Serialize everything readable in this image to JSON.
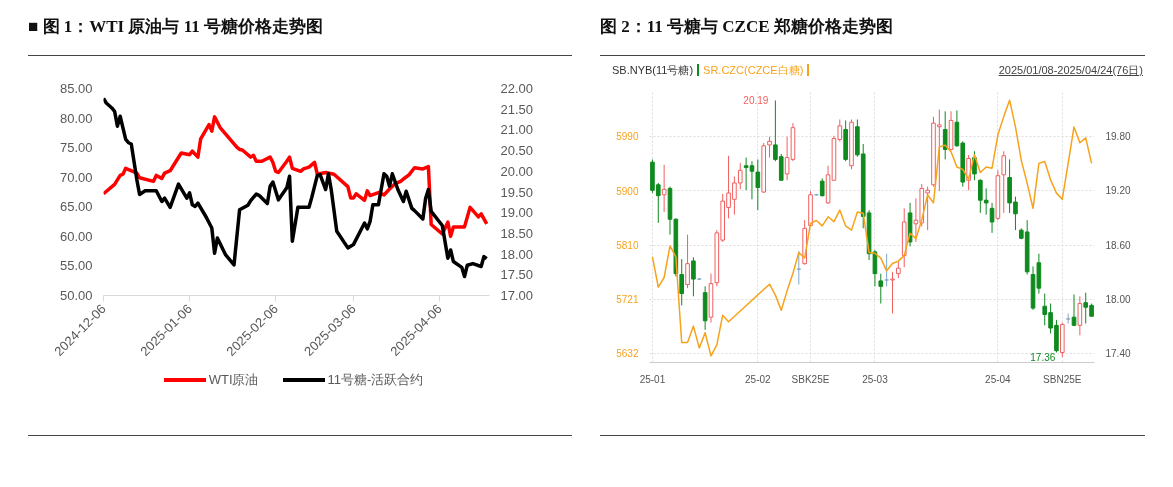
{
  "chart_data": [
    {
      "type": "line",
      "title": "■ 图 1：WTI 原油与 11 号糖价格走势图",
      "xlim": [
        "2024-12-06",
        "2025-04-24"
      ],
      "xticks": [
        "2024-12-06",
        "2025-01-06",
        "2025-02-06",
        "2025-03-06",
        "2025-04-06"
      ],
      "ylim": [
        50,
        85
      ],
      "yticks": [
        {
          "value": 50,
          "label": "50.00"
        },
        {
          "value": 55,
          "label": "55.00"
        },
        {
          "value": 60,
          "label": "60.00"
        },
        {
          "value": 65,
          "label": "65.00"
        },
        {
          "value": 70,
          "label": "70.00"
        },
        {
          "value": 75,
          "label": "75.00"
        },
        {
          "value": 80,
          "label": "80.00"
        },
        {
          "value": 85,
          "label": "85.00"
        }
      ],
      "y2lim": [
        17,
        22
      ],
      "y2ticks": [
        {
          "value": 17,
          "label": "17.00"
        },
        {
          "value": 17.5,
          "label": "17.50"
        },
        {
          "value": 18,
          "label": "18.00"
        },
        {
          "value": 18.5,
          "label": "18.50"
        },
        {
          "value": 19,
          "label": "19.00"
        },
        {
          "value": 19.5,
          "label": "19.50"
        },
        {
          "value": 20,
          "label": "20.00"
        },
        {
          "value": 20.5,
          "label": "20.50"
        },
        {
          "value": 21,
          "label": "21.00"
        },
        {
          "value": 21.5,
          "label": "21.50"
        },
        {
          "value": 22,
          "label": "22.00"
        }
      ],
      "legend": "bottom",
      "grid": false,
      "series": [
        {
          "name": "WTI原油",
          "color": "#ff0000",
          "x": [
            "2024-12-06",
            "2024-12-10",
            "2024-12-12",
            "2024-12-13",
            "2024-12-14",
            "2024-12-18",
            "2024-12-19",
            "2024-12-24",
            "2024-12-25",
            "2024-12-27",
            "2024-12-28",
            "2024-12-30",
            "2025-01-03",
            "2025-01-06",
            "2025-01-07",
            "2025-01-09",
            "2025-01-10",
            "2025-01-13",
            "2025-01-14",
            "2025-01-15",
            "2025-01-17",
            "2025-01-19",
            "2025-01-23",
            "2025-01-24",
            "2025-01-25",
            "2025-01-28",
            "2025-01-29",
            "2025-01-30",
            "2025-02-01",
            "2025-02-04",
            "2025-02-05",
            "2025-02-06",
            "2025-02-07",
            "2025-02-10",
            "2025-02-11",
            "2025-02-12",
            "2025-02-15",
            "2025-02-16",
            "2025-02-18",
            "2025-02-20",
            "2025-02-21",
            "2025-02-24",
            "2025-02-27",
            "2025-03-04",
            "2025-03-05",
            "2025-03-06",
            "2025-03-07",
            "2025-03-10",
            "2025-03-11",
            "2025-03-12",
            "2025-03-15",
            "2025-03-17",
            "2025-03-19",
            "2025-03-21",
            "2025-03-23",
            "2025-03-24",
            "2025-03-26",
            "2025-03-28",
            "2025-03-31",
            "2025-04-02",
            "2025-04-03",
            "2025-04-07",
            "2025-04-09",
            "2025-04-10",
            "2025-04-11",
            "2025-04-15",
            "2025-04-17",
            "2025-04-20",
            "2025-04-21",
            "2025-04-23"
          ],
          "values": [
            67.2,
            68.8,
            70.3,
            70.5,
            71.5,
            70.7,
            69.9,
            69.3,
            70.3,
            69.8,
            70.7,
            71.1,
            74.1,
            73.8,
            74.4,
            73.4,
            76.5,
            78.9,
            77.8,
            80.2,
            78.4,
            77.3,
            75.1,
            74.7,
            74.6,
            73.4,
            73.7,
            72.7,
            72.7,
            73.4,
            72.5,
            71.0,
            70.8,
            72.7,
            73.4,
            71.5,
            71.0,
            71.4,
            71.7,
            72.5,
            70.5,
            70.8,
            70.5,
            68.4,
            66.5,
            66.5,
            67.2,
            66.1,
            67.7,
            66.9,
            67.4,
            67.0,
            68.0,
            68.9,
            69.3,
            69.7,
            70.4,
            71.6,
            71.4,
            71.8,
            62.0,
            60.4,
            62.4,
            60.0,
            61.6,
            61.6,
            64.9,
            63.3,
            63.8,
            62.1
          ]
        },
        {
          "name": "11号糖-活跃合约",
          "color": "#000000",
          "axis": "y2",
          "x": [
            "2024-12-06",
            "2024-12-07",
            "2024-12-09",
            "2024-12-10",
            "2024-12-11",
            "2024-12-12",
            "2024-12-13",
            "2024-12-14",
            "2024-12-15",
            "2024-12-16",
            "2024-12-18",
            "2024-12-19",
            "2024-12-21",
            "2024-12-25",
            "2024-12-27",
            "2024-12-28",
            "2024-12-30",
            "2025-01-02",
            "2025-01-05",
            "2025-01-06",
            "2025-01-07",
            "2025-01-08",
            "2025-01-09",
            "2025-01-12",
            "2025-01-14",
            "2025-01-15",
            "2025-01-16",
            "2025-01-19",
            "2025-01-22",
            "2025-01-24",
            "2025-01-27",
            "2025-01-28",
            "2025-01-30",
            "2025-01-31",
            "2025-02-03",
            "2025-02-04",
            "2025-02-05",
            "2025-02-07",
            "2025-02-10",
            "2025-02-11",
            "2025-02-12",
            "2025-02-14",
            "2025-02-18",
            "2025-02-19",
            "2025-02-21",
            "2025-02-22",
            "2025-02-24",
            "2025-02-25",
            "2025-02-26",
            "2025-02-28",
            "2025-03-04",
            "2025-03-06",
            "2025-03-10",
            "2025-03-11",
            "2025-03-12",
            "2025-03-13",
            "2025-03-15",
            "2025-03-17",
            "2025-03-18",
            "2025-03-19",
            "2025-03-20",
            "2025-03-22",
            "2025-03-24",
            "2025-03-25",
            "2025-03-27",
            "2025-03-28",
            "2025-03-31",
            "2025-04-01",
            "2025-04-02",
            "2025-04-03",
            "2025-04-07",
            "2025-04-09",
            "2025-04-10",
            "2025-04-11",
            "2025-04-14",
            "2025-04-15",
            "2025-04-16",
            "2025-04-18",
            "2025-04-21",
            "2025-04-22",
            "2025-04-23"
          ],
          "values": [
            21.76,
            21.65,
            21.53,
            21.45,
            21.09,
            21.33,
            21.05,
            20.77,
            20.69,
            20.66,
            19.8,
            19.44,
            19.53,
            19.53,
            19.27,
            19.35,
            19.13,
            19.69,
            19.35,
            19.48,
            19.19,
            19.15,
            19.23,
            18.89,
            18.63,
            18.02,
            18.39,
            17.98,
            17.74,
            19.07,
            19.18,
            19.29,
            19.45,
            19.42,
            19.22,
            19.64,
            19.74,
            19.31,
            19.6,
            19.88,
            18.31,
            19.13,
            19.13,
            19.37,
            19.9,
            19.92,
            19.56,
            19.94,
            19.56,
            18.55,
            18.15,
            18.23,
            18.75,
            18.61,
            18.79,
            19.19,
            19.19,
            19.94,
            19.88,
            19.64,
            19.94,
            19.56,
            19.27,
            19.52,
            19.11,
            19.05,
            18.85,
            19.35,
            19.56,
            19.03,
            18.69,
            17.9,
            18.1,
            17.82,
            17.68,
            17.46,
            17.73,
            17.77,
            17.7,
            17.94,
            17.89
          ]
        }
      ]
    },
    {
      "type": "candlestick",
      "title": "图 2：11 号糖与 CZCE 郑糖价格走势图",
      "annotations": [
        "2025/01/08-2025/04/24(76日)"
      ],
      "categories": [
        "25-01",
        null,
        null,
        null,
        null,
        null,
        null,
        null,
        null,
        null,
        null,
        null,
        null,
        null,
        null,
        null,
        null,
        null,
        "25-02",
        null,
        null,
        null,
        null,
        null,
        null,
        null,
        null,
        "SBK25E",
        null,
        null,
        null,
        null,
        null,
        null,
        null,
        null,
        null,
        null,
        "25-03",
        null,
        null,
        null,
        null,
        null,
        null,
        null,
        null,
        null,
        null,
        null,
        null,
        null,
        null,
        null,
        null,
        null,
        null,
        null,
        null,
        "25-04",
        null,
        null,
        null,
        null,
        null,
        null,
        null,
        null,
        null,
        null,
        "SBN25E",
        null,
        null,
        null,
        null,
        null
      ],
      "ylim": [
        5617,
        6065
      ],
      "yticks": [
        5632,
        5721,
        5810,
        5900,
        5990
      ],
      "y2lim": [
        17.3,
        20.3
      ],
      "y2ticks": [
        {
          "value": 17.4,
          "label": "17.40"
        },
        {
          "value": 18,
          "label": "18.00"
        },
        {
          "value": 18.6,
          "label": "18.60"
        },
        {
          "value": 19.2,
          "label": "19.20"
        },
        {
          "value": 19.8,
          "label": "19.80"
        }
      ],
      "grid": true,
      "legend": "top left",
      "series": [
        {
          "type": "candlestick",
          "name": "SB.NYB(11号糖)",
          "axis": "y2",
          "ohlc": [
            [
              19.51,
              19.54,
              19.17,
              19.2
            ],
            [
              19.26,
              19.28,
              18.84,
              19.14
            ],
            [
              19.15,
              19.48,
              18.96,
              19.21
            ],
            [
              19.22,
              19.24,
              18.71,
              18.88
            ],
            [
              18.88,
              18.89,
              18.25,
              18.28
            ],
            [
              18.27,
              18.44,
              17.93,
              18.06
            ],
            [
              18.16,
              18.71,
              18.12,
              18.39
            ],
            [
              18.42,
              18.46,
              18.03,
              18.22
            ],
            [
              18.22,
              18.23,
              18.21,
              18.22
            ],
            [
              18.07,
              18.14,
              17.66,
              17.76
            ],
            [
              17.8,
              18.28,
              17.74,
              18.17
            ],
            [
              18.18,
              18.76,
              18.14,
              18.73
            ],
            [
              18.65,
              19.16,
              18.63,
              19.08
            ],
            [
              19.01,
              19.58,
              18.89,
              19.17
            ],
            [
              19.1,
              19.35,
              18.93,
              19.28
            ],
            [
              19.28,
              19.5,
              19.21,
              19.42
            ],
            [
              19.47,
              19.56,
              19.2,
              19.45
            ],
            [
              19.47,
              19.52,
              19.1,
              19.41
            ],
            [
              19.4,
              19.54,
              18.98,
              19.23
            ],
            [
              19.18,
              19.72,
              19.17,
              19.69
            ],
            [
              19.7,
              19.79,
              19.56,
              19.74
            ],
            [
              19.7,
              20.19,
              19.52,
              19.54
            ],
            [
              19.57,
              19.6,
              19.31,
              19.31
            ],
            [
              19.38,
              19.79,
              19.31,
              19.56
            ],
            [
              19.54,
              19.94,
              19.52,
              19.89
            ],
            [
              18.33,
              18.53,
              18.16,
              18.33
            ],
            [
              18.39,
              18.87,
              18.38,
              18.78
            ],
            [
              18.81,
              19.19,
              18.8,
              19.15
            ],
            [
              19.15,
              19.16,
              19.14,
              19.15
            ],
            [
              19.3,
              19.33,
              19.13,
              19.14
            ],
            [
              19.06,
              19.47,
              19.05,
              19.37
            ],
            [
              19.31,
              19.8,
              19.31,
              19.77
            ],
            [
              19.76,
              19.98,
              19.74,
              19.91
            ],
            [
              19.87,
              19.97,
              19.52,
              19.54
            ],
            [
              19.47,
              19.98,
              19.43,
              19.95
            ],
            [
              19.9,
              19.98,
              19.57,
              19.59
            ],
            [
              19.6,
              19.71,
              18.78,
              18.91
            ],
            [
              18.95,
              18.98,
              18.43,
              18.5
            ],
            [
              18.52,
              18.54,
              18.14,
              18.28
            ],
            [
              18.2,
              18.28,
              17.95,
              18.14
            ],
            [
              18.21,
              18.5,
              18.14,
              18.21
            ],
            [
              18.21,
              18.3,
              17.84,
              18.22
            ],
            [
              18.28,
              18.41,
              18.23,
              18.34
            ],
            [
              18.48,
              19.0,
              18.35,
              18.85
            ],
            [
              18.95,
              19.06,
              18.58,
              18.63
            ],
            [
              18.83,
              19.11,
              18.63,
              18.87
            ],
            [
              18.84,
              19.27,
              18.8,
              19.22
            ],
            [
              19.17,
              19.24,
              18.76,
              19.2
            ],
            [
              19.26,
              20.01,
              19.24,
              19.94
            ],
            [
              19.9,
              20.09,
              19.19,
              19.92
            ],
            [
              19.87,
              20.07,
              19.54,
              19.65
            ],
            [
              19.65,
              20.07,
              19.64,
              19.97
            ],
            [
              19.95,
              20.08,
              19.68,
              19.69
            ],
            [
              19.72,
              19.74,
              19.24,
              19.29
            ],
            [
              19.31,
              19.59,
              19.2,
              19.55
            ],
            [
              19.56,
              19.63,
              19.31,
              19.38
            ],
            [
              19.31,
              19.32,
              18.95,
              19.09
            ],
            [
              19.09,
              19.22,
              18.93,
              19.06
            ],
            [
              19.0,
              19.06,
              18.73,
              18.85
            ],
            [
              18.89,
              19.42,
              18.87,
              19.36
            ],
            [
              19.37,
              19.63,
              18.95,
              19.58
            ],
            [
              19.34,
              19.54,
              18.95,
              19.06
            ],
            [
              19.07,
              19.13,
              18.76,
              18.94
            ],
            [
              18.76,
              18.78,
              18.66,
              18.67
            ],
            [
              18.74,
              18.87,
              18.27,
              18.3
            ],
            [
              18.27,
              18.36,
              17.88,
              17.9
            ],
            [
              18.4,
              18.5,
              18.06,
              18.12
            ],
            [
              17.92,
              18.06,
              17.71,
              17.83
            ],
            [
              17.85,
              17.95,
              17.62,
              17.68
            ],
            [
              17.71,
              17.77,
              17.41,
              17.43
            ],
            [
              17.41,
              17.74,
              17.36,
              17.72
            ],
            [
              17.78,
              17.84,
              17.73,
              17.78
            ],
            [
              17.8,
              18.05,
              17.7,
              17.71
            ],
            [
              17.71,
              18.03,
              17.6,
              17.95
            ],
            [
              17.96,
              18.07,
              17.73,
              17.91
            ],
            [
              17.93,
              17.95,
              17.81,
              17.81
            ]
          ],
          "colors": [
            "#0f8a1f",
            "#0f8a1f",
            "#f06060",
            "#0f8a1f",
            "#0f8a1f",
            "#0f8a1f",
            "#f06060",
            "#0f8a1f",
            "#7fa8c9",
            "#0f8a1f",
            "#f06060",
            "#f06060",
            "#f06060",
            "#f06060",
            "#f06060",
            "#f06060",
            "#0f8a1f",
            "#0f8a1f",
            "#0f8a1f",
            "#f06060",
            "#f06060",
            "#0f8a1f",
            "#0f8a1f",
            "#f06060",
            "#f06060",
            "#7fa8c9",
            "#f06060",
            "#f06060",
            "#7fa8c9",
            "#0f8a1f",
            "#f06060",
            "#f06060",
            "#f06060",
            "#0f8a1f",
            "#f06060",
            "#0f8a1f",
            "#0f8a1f",
            "#0f8a1f",
            "#0f8a1f",
            "#0f8a1f",
            "#7fa8c9",
            "#f06060",
            "#f06060",
            "#f06060",
            "#0f8a1f",
            "#f06060",
            "#f06060",
            "#f06060",
            "#f06060",
            "#f06060",
            "#0f8a1f",
            "#f06060",
            "#0f8a1f",
            "#0f8a1f",
            "#f06060",
            "#0f8a1f",
            "#0f8a1f",
            "#0f8a1f",
            "#0f8a1f",
            "#f06060",
            "#f06060",
            "#0f8a1f",
            "#0f8a1f",
            "#0f8a1f",
            "#0f8a1f",
            "#0f8a1f",
            "#0f8a1f",
            "#0f8a1f",
            "#0f8a1f",
            "#0f8a1f",
            "#f06060",
            "#7fa8c9",
            "#0f8a1f",
            "#f06060",
            "#0f8a1f",
            "#0f8a1f"
          ],
          "value_labels": [
            null,
            null,
            null,
            null,
            null,
            null,
            null,
            null,
            null,
            null,
            null,
            null,
            null,
            null,
            null,
            null,
            null,
            null,
            null,
            null,
            null,
            "20.19",
            null,
            null,
            null,
            null,
            null,
            null,
            null,
            null,
            null,
            null,
            null,
            null,
            null,
            null,
            null,
            null,
            null,
            null,
            null,
            null,
            null,
            null,
            null,
            null,
            null,
            null,
            null,
            null,
            null,
            null,
            null,
            null,
            null,
            null,
            null,
            null,
            null,
            null,
            null,
            null,
            null,
            null,
            null,
            null,
            null,
            null,
            null,
            null,
            "17.36",
            null,
            null,
            null,
            null,
            null
          ]
        },
        {
          "type": "line",
          "name": "SR.CZC(CZCE白糖)",
          "color": "#f7a21b",
          "values": [
            5791,
            5741,
            5757,
            5809,
            5791,
            5650,
            5650,
            5677,
            5641,
            5666,
            5628,
            5646,
            5695,
            5684,
            null,
            null,
            null,
            null,
            null,
            null,
            5746,
            5728,
            5703,
            5735,
            5764,
            5798,
            5789,
            5846,
            5851,
            5842,
            5857,
            5849,
            5868,
            5842,
            5835,
            5865,
            5863,
            5798,
            5797,
            5789,
            5768,
            5780,
            5784,
            5793,
            5830,
            5821,
            5852,
            5893,
            5880,
            5972,
            5975,
            5964,
            5939,
            5935,
            5919,
            5959,
            5930,
            5939,
            5937,
            5992,
            6022,
            6049,
            6005,
            5950,
            5912,
            5871,
            5945,
            5948,
            5918,
            5896,
            5886,
            5945,
            6005,
            5979,
            5987,
            5945
          ]
        }
      ]
    }
  ]
}
